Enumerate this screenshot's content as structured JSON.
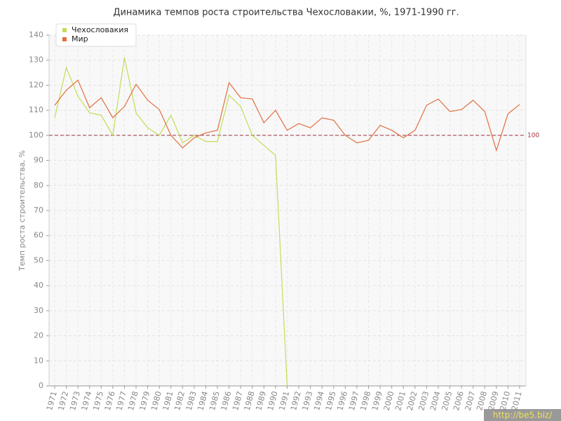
{
  "chart_data": {
    "type": "line",
    "title": "Динамика темпов роста строительства Чехословакии, %, 1971-1990 гг.",
    "y_label": "Темп роста строительства, %",
    "categories": [
      "1971",
      "1972",
      "1973",
      "1974",
      "1975",
      "1976",
      "1977",
      "1978",
      "1979",
      "1980",
      "1981",
      "1982",
      "1983",
      "1984",
      "1985",
      "1986",
      "1987",
      "1988",
      "1989",
      "1990",
      "1991",
      "1992",
      "1993",
      "1994",
      "1995",
      "1996",
      "1997",
      "1998",
      "1999",
      "2000",
      "2001",
      "2002",
      "2003",
      "2004",
      "2005",
      "2006",
      "2007",
      "2008",
      "2009",
      "2010",
      "2011"
    ],
    "series": [
      {
        "name": "Чехословакия",
        "color": "#c2dd55",
        "values": [
          107,
          127,
          115.6,
          109,
          108,
          100,
          131,
          109,
          103,
          100,
          108,
          97,
          100,
          97.5,
          97.5,
          116,
          111.5,
          100,
          96,
          92,
          0,
          null,
          null,
          null,
          null,
          null,
          null,
          null,
          null,
          null,
          null,
          null,
          null,
          null,
          null,
          null,
          null,
          null,
          null,
          null,
          null
        ]
      },
      {
        "name": "Мир",
        "color": "#e07040",
        "values": [
          112,
          118,
          122,
          111,
          115,
          107,
          111.5,
          120.4,
          114,
          110.3,
          100,
          95,
          99,
          101,
          102,
          121,
          115,
          114.5,
          105,
          110,
          102,
          104.7,
          103,
          107,
          106,
          100,
          97,
          98,
          104,
          102,
          99,
          102,
          112,
          114.5,
          109.5,
          110.3,
          114,
          109.5,
          94,
          108.6,
          112.3
        ]
      }
    ],
    "ylim": [
      0,
      140
    ],
    "yticks": [
      0,
      10,
      20,
      30,
      40,
      50,
      60,
      70,
      80,
      90,
      100,
      110,
      120,
      130,
      140
    ],
    "reference_line": 100,
    "reference_color": "#a03040",
    "grid": true,
    "legend": "top-left",
    "watermark": "http://be5.biz/"
  }
}
